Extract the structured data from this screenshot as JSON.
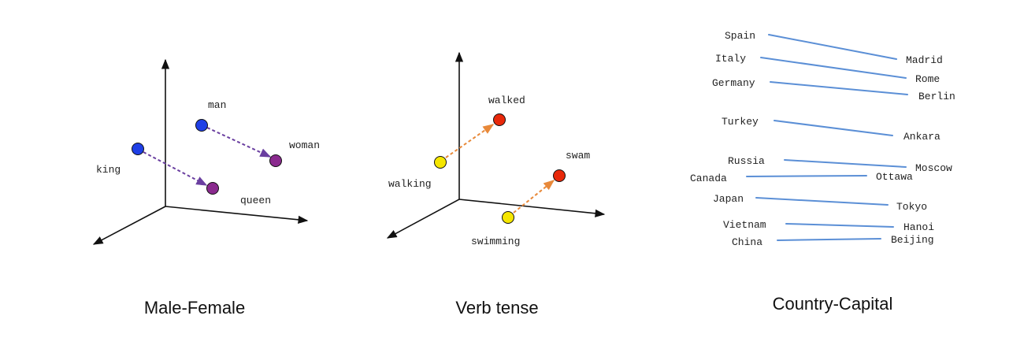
{
  "colors": {
    "axis": "#111111",
    "purple_arrow": "#6a3fa0",
    "orange_arrow": "#e8893a",
    "blue_line": "#5b8fd6",
    "blue_dot": "#1f3fe6",
    "purple_dot": "#8a2a8e",
    "yellow_dot": "#f5e600",
    "red_dot": "#e8280a"
  },
  "panels": {
    "male_female": {
      "caption": "Male-Female",
      "words": {
        "man": "man",
        "woman": "woman",
        "king": "king",
        "queen": "queen"
      }
    },
    "verb_tense": {
      "caption": "Verb tense",
      "words": {
        "walked": "walked",
        "walking": "walking",
        "swam": "swam",
        "swimming": "swimming"
      }
    },
    "country_capital": {
      "caption": "Country-Capital",
      "pairs": [
        {
          "country": "Spain",
          "capital": "Madrid"
        },
        {
          "country": "Italy",
          "capital": "Rome"
        },
        {
          "country": "Germany",
          "capital": "Berlin"
        },
        {
          "country": "Turkey",
          "capital": "Ankara"
        },
        {
          "country": "Russia",
          "capital": "Moscow"
        },
        {
          "country": "Canada",
          "capital": "Ottawa"
        },
        {
          "country": "Japan",
          "capital": "Tokyo"
        },
        {
          "country": "Vietnam",
          "capital": "Hanoi"
        },
        {
          "country": "China",
          "capital": "Beijing"
        }
      ]
    }
  }
}
